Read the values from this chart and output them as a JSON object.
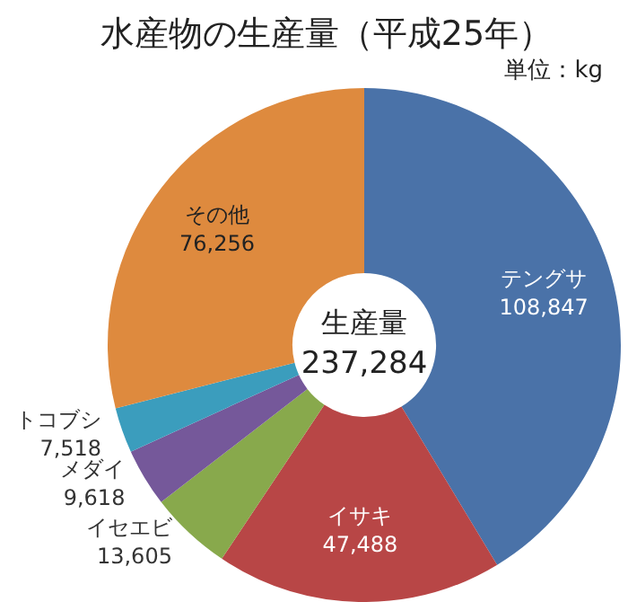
{
  "chart_data": {
    "type": "donut",
    "title": "水産物の生産量（平成25年）",
    "subtitle": "単位：kg",
    "categories": [
      "テングサ",
      "イサキ",
      "イセエビ",
      "メダイ",
      "トコブシ",
      "その他"
    ],
    "values": [
      108847,
      47488,
      13605,
      9618,
      7518,
      76256
    ],
    "value_labels": [
      "108,847",
      "47,488",
      "13,605",
      "9,618",
      "7,518",
      "76,256"
    ],
    "colors": [
      "#4a72a8",
      "#b84646",
      "#88a94c",
      "#75589a",
      "#3b9dbd",
      "#de8a3e"
    ],
    "annotations": [
      "生産量",
      "237,284"
    ],
    "legend": false
  }
}
